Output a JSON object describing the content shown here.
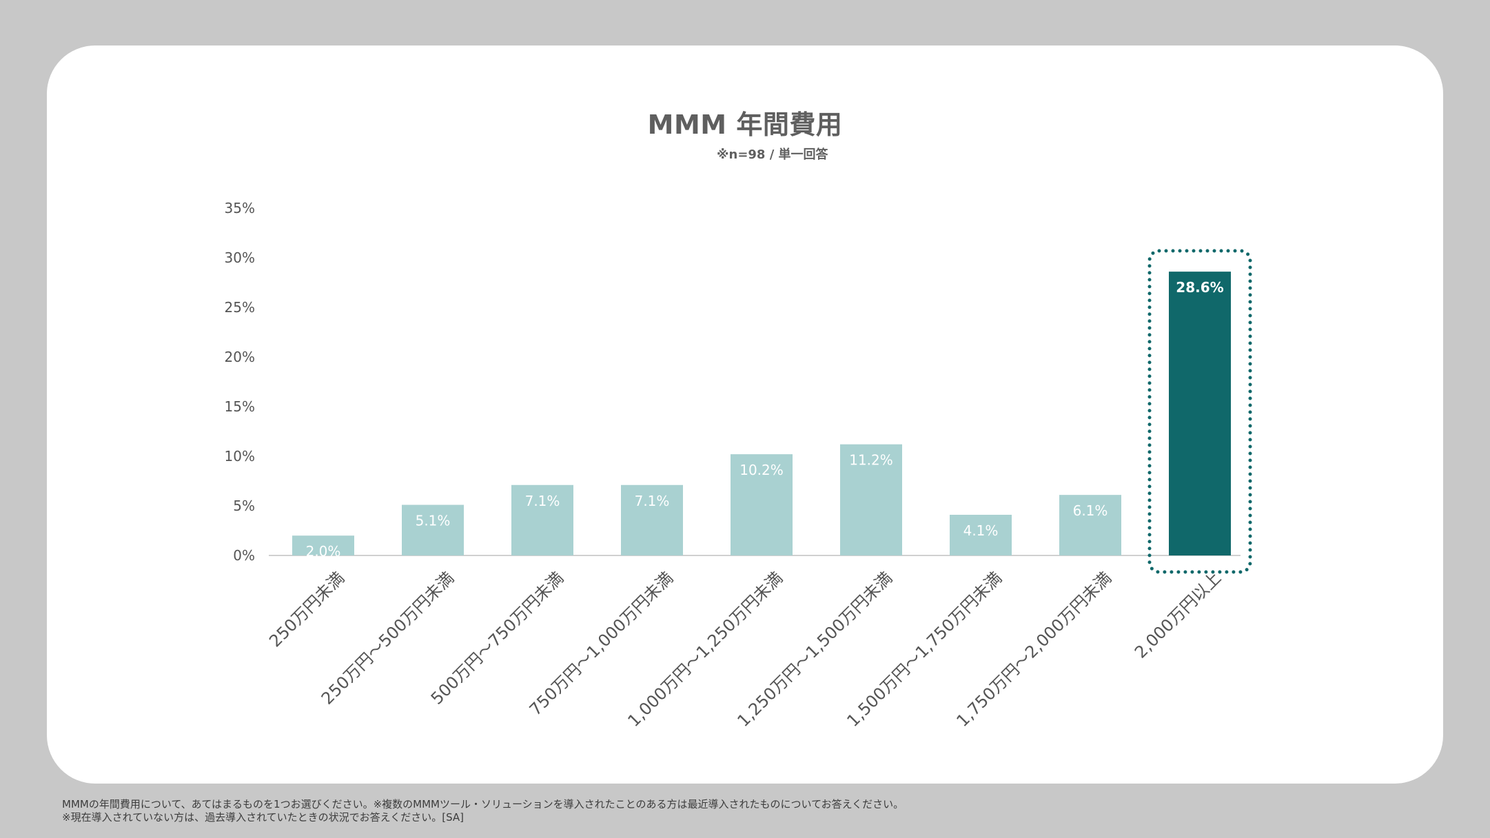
{
  "chart_data": {
    "type": "bar",
    "title": "MMM 年間費用",
    "subtitle": "※n=98 / 単一回答",
    "categories": [
      "250万円未満",
      "250万円～500万円未満",
      "500万円～750万円未満",
      "750万円～1,000万円未満",
      "1,000万円～1,250万円未満",
      "1,250万円～1,500万円未満",
      "1,500万円～1,750万円未満",
      "1,750万円～2,000万円未満",
      "2,000万円以上"
    ],
    "values": [
      2.0,
      5.1,
      7.1,
      7.1,
      10.2,
      11.2,
      4.1,
      6.1,
      28.6
    ],
    "value_labels": [
      "2.0%",
      "5.1%",
      "7.1%",
      "7.1%",
      "10.2%",
      "11.2%",
      "4.1%",
      "6.1%",
      "28.6%"
    ],
    "y_ticks": [
      "0%",
      "5%",
      "10%",
      "15%",
      "20%",
      "25%",
      "30%",
      "35%"
    ],
    "ylim": [
      0,
      35
    ],
    "grid": false,
    "highlight_index": 8,
    "colors": {
      "bar": "#a9d1d1",
      "highlight_bar": "#10686a",
      "highlight_box": "#10686a"
    }
  },
  "footnote": {
    "line1": "MMMの年間費用について、あてはまるものを1つお選びください。※複数のMMMツール・ソリューションを導入されたことのある方は最近導入されたものについてお答えください。",
    "line2": "※現在導入されていない方は、過去導入されていたときの状況でお答えください。[SA]"
  }
}
